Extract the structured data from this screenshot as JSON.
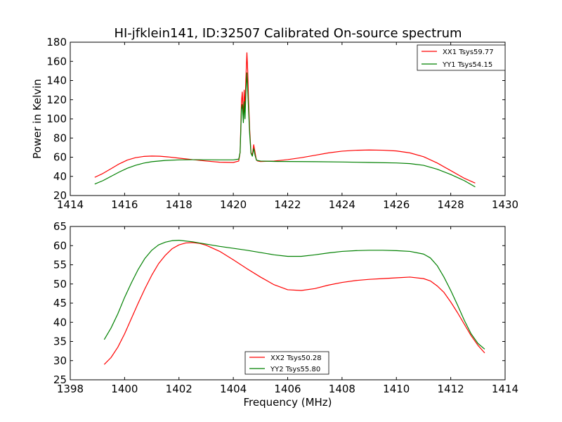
{
  "figure": {
    "title": "HI-jfklein141, ID:32507 Calibrated On-source spectrum"
  },
  "chart_data": [
    {
      "type": "line",
      "title": "HI-jfklein141, ID:32507 Calibrated On-source spectrum",
      "xlabel": "",
      "ylabel": "Power in Kelvin",
      "xlim": [
        1414,
        1430
      ],
      "ylim": [
        20,
        180
      ],
      "xticks": [
        1414,
        1416,
        1418,
        1420,
        1422,
        1424,
        1426,
        1428,
        1430
      ],
      "yticks": [
        20,
        40,
        60,
        80,
        100,
        120,
        140,
        160,
        180
      ],
      "grid": false,
      "legend_position": "top-right",
      "series": [
        {
          "name": "XX1 Tsys59.77",
          "color": "#ff0000",
          "x": [
            1414.9,
            1415.2,
            1415.5,
            1415.8,
            1416.1,
            1416.4,
            1416.7,
            1417.0,
            1417.3,
            1417.6,
            1418.0,
            1418.5,
            1419.0,
            1419.5,
            1420.0,
            1420.2,
            1420.25,
            1420.3,
            1420.33,
            1420.37,
            1420.4,
            1420.43,
            1420.46,
            1420.5,
            1420.53,
            1420.56,
            1420.6,
            1420.65,
            1420.7,
            1420.75,
            1420.8,
            1420.85,
            1420.9,
            1421.0,
            1421.5,
            1422.0,
            1422.5,
            1423.0,
            1423.5,
            1424.0,
            1424.5,
            1425.0,
            1425.5,
            1426.0,
            1426.5,
            1427.0,
            1427.5,
            1428.0,
            1428.5,
            1428.9
          ],
          "y": [
            39,
            43,
            48,
            53,
            57,
            59.5,
            60.8,
            61.2,
            61,
            60.3,
            59,
            57.5,
            56,
            54.8,
            54.5,
            56,
            65,
            118,
            128,
            100,
            130,
            110,
            140,
            169,
            150,
            120,
            90,
            65,
            62,
            73,
            65,
            57,
            56,
            55.5,
            56,
            57.5,
            59.5,
            62,
            64.5,
            66.3,
            67.2,
            67.5,
            67.3,
            66.5,
            64.5,
            60.5,
            54,
            46,
            38,
            33
          ]
        },
        {
          "name": "YY1 Tsys54.15",
          "color": "#008000",
          "x": [
            1414.9,
            1415.2,
            1415.5,
            1415.8,
            1416.1,
            1416.4,
            1416.7,
            1417.0,
            1417.5,
            1418.0,
            1418.5,
            1419.0,
            1419.5,
            1420.0,
            1420.2,
            1420.25,
            1420.3,
            1420.33,
            1420.37,
            1420.4,
            1420.43,
            1420.46,
            1420.5,
            1420.53,
            1420.56,
            1420.6,
            1420.65,
            1420.7,
            1420.75,
            1420.8,
            1420.85,
            1420.9,
            1421.0,
            1421.5,
            1422.0,
            1423.0,
            1424.0,
            1425.0,
            1426.0,
            1426.5,
            1427.0,
            1427.5,
            1428.0,
            1428.5,
            1428.9
          ],
          "y": [
            32,
            35.5,
            40,
            44.5,
            48.5,
            51.5,
            53.8,
            55.3,
            56.6,
            57.2,
            57.4,
            57.3,
            57.2,
            57.2,
            58,
            65,
            110,
            115,
            96,
            118,
            100,
            125,
            148,
            130,
            110,
            85,
            64,
            61,
            69,
            62,
            57,
            56.5,
            56,
            55.6,
            55.5,
            55.3,
            55,
            54.5,
            54,
            53.3,
            51.5,
            47.5,
            42,
            35.5,
            29
          ]
        }
      ]
    },
    {
      "type": "line",
      "title": "",
      "xlabel": "Frequency (MHz)",
      "ylabel": "",
      "xlim": [
        1398,
        1414
      ],
      "ylim": [
        25,
        65
      ],
      "xticks": [
        1398,
        1400,
        1402,
        1404,
        1406,
        1408,
        1410,
        1412,
        1414
      ],
      "yticks": [
        25,
        30,
        35,
        40,
        45,
        50,
        55,
        60,
        65
      ],
      "grid": false,
      "legend_position": "bottom-center",
      "series": [
        {
          "name": "XX2 Tsys50.28",
          "color": "#ff0000",
          "x": [
            1399.25,
            1399.5,
            1399.75,
            1400.0,
            1400.25,
            1400.5,
            1400.75,
            1401.0,
            1401.25,
            1401.5,
            1401.75,
            1402.0,
            1402.25,
            1402.5,
            1402.75,
            1403.0,
            1403.5,
            1404.0,
            1404.5,
            1405.0,
            1405.5,
            1406.0,
            1406.5,
            1407.0,
            1407.5,
            1408.0,
            1408.5,
            1409.0,
            1409.5,
            1410.0,
            1410.5,
            1411.0,
            1411.25,
            1411.5,
            1411.75,
            1412.0,
            1412.25,
            1412.5,
            1412.75,
            1413.0,
            1413.25
          ],
          "y": [
            29,
            30.8,
            33.5,
            37,
            41,
            45,
            48.8,
            52.3,
            55.3,
            57.5,
            59.2,
            60.2,
            60.7,
            60.8,
            60.6,
            60.1,
            58.5,
            56.3,
            54,
            51.8,
            49.8,
            48.5,
            48.3,
            48.8,
            49.7,
            50.4,
            50.9,
            51.2,
            51.4,
            51.6,
            51.8,
            51.4,
            50.8,
            49.5,
            47.8,
            45.3,
            42.5,
            39.5,
            36.5,
            34,
            32
          ]
        },
        {
          "name": "YY2 Tsys55.80",
          "color": "#008000",
          "x": [
            1399.25,
            1399.5,
            1399.75,
            1400.0,
            1400.25,
            1400.5,
            1400.75,
            1401.0,
            1401.25,
            1401.5,
            1401.75,
            1402.0,
            1402.5,
            1403.0,
            1403.5,
            1404.0,
            1404.5,
            1405.0,
            1405.5,
            1406.0,
            1406.5,
            1407.0,
            1407.5,
            1408.0,
            1408.5,
            1409.0,
            1409.5,
            1410.0,
            1410.5,
            1411.0,
            1411.25,
            1411.5,
            1411.75,
            1412.0,
            1412.25,
            1412.5,
            1412.75,
            1413.0,
            1413.25
          ],
          "y": [
            35.5,
            38.5,
            42.2,
            46.5,
            50.3,
            53.8,
            56.7,
            58.8,
            60.2,
            60.9,
            61.3,
            61.4,
            61,
            60.4,
            59.8,
            59.3,
            58.8,
            58.2,
            57.6,
            57.2,
            57.2,
            57.6,
            58.1,
            58.5,
            58.7,
            58.8,
            58.8,
            58.7,
            58.5,
            57.8,
            56.8,
            54.8,
            51.8,
            48.3,
            44.5,
            40.5,
            37,
            34.5,
            33
          ]
        }
      ]
    }
  ]
}
